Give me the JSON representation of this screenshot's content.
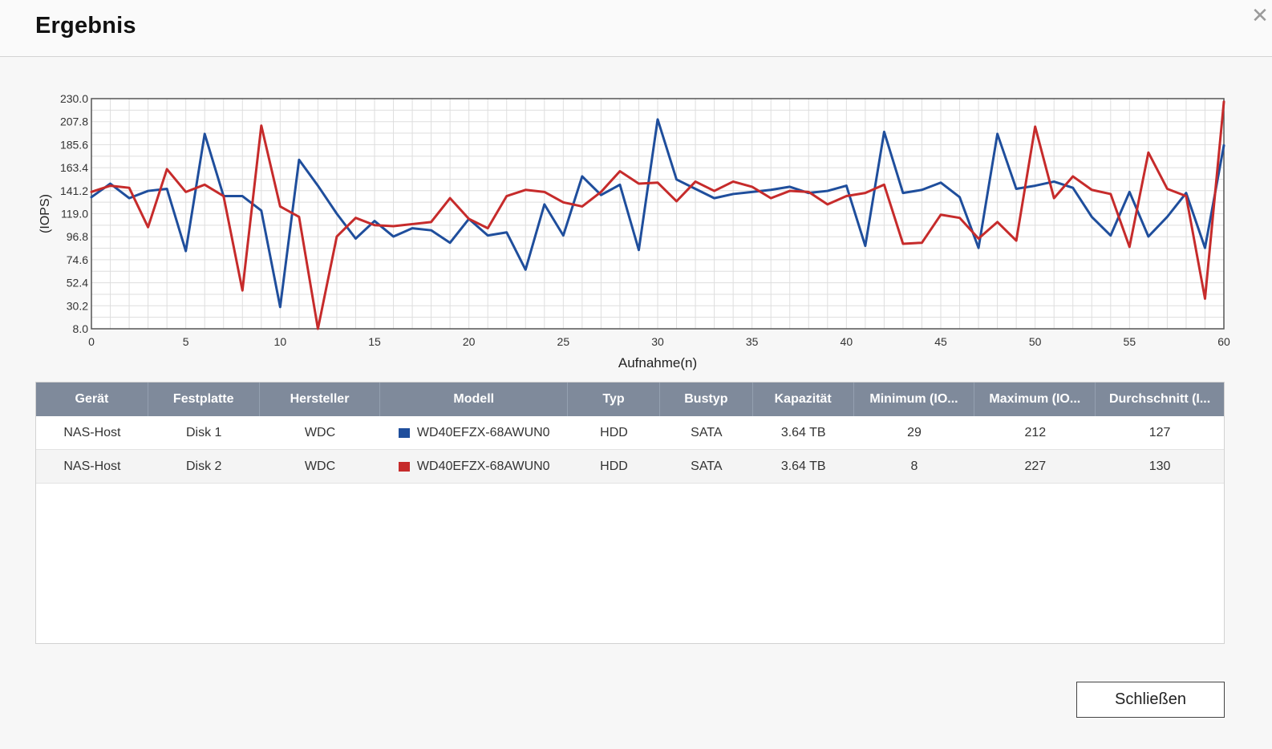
{
  "dialog": {
    "title": "Ergebnis",
    "close_icon": "close-icon",
    "close_button_label": "Schließen"
  },
  "chart_data": {
    "type": "line",
    "xlabel": "Aufnahme(n)",
    "ylabel": "(IOPS)",
    "xlim": [
      0,
      60
    ],
    "ylim": [
      8.0,
      230.0
    ],
    "x_ticks": [
      "0",
      "5",
      "10",
      "15",
      "20",
      "25",
      "30",
      "35",
      "40",
      "45",
      "50",
      "55",
      "60"
    ],
    "y_ticks": [
      "230.0",
      "207.8",
      "185.6",
      "163.4",
      "141.2",
      "119.0",
      "96.8",
      "74.6",
      "52.4",
      "30.2",
      "8.0"
    ],
    "grid": true,
    "x": [
      0,
      1,
      2,
      3,
      4,
      5,
      6,
      7,
      8,
      9,
      10,
      11,
      12,
      13,
      14,
      15,
      16,
      17,
      18,
      19,
      20,
      21,
      22,
      23,
      24,
      25,
      26,
      27,
      28,
      29,
      30,
      31,
      32,
      33,
      34,
      35,
      36,
      37,
      38,
      39,
      40,
      41,
      42,
      43,
      44,
      45,
      46,
      47,
      48,
      49,
      50,
      51,
      52,
      53,
      54,
      55,
      56,
      57,
      58,
      59,
      60
    ],
    "series": [
      {
        "color": "#1f4e9c",
        "values": [
          135,
          148,
          134,
          141,
          143,
          83,
          196,
          136,
          136,
          122,
          29,
          171,
          146,
          119,
          95,
          112,
          97,
          105,
          103,
          91,
          114,
          98,
          101,
          65,
          128,
          98,
          155,
          137,
          147,
          84,
          210,
          152,
          143,
          134,
          138,
          140,
          142,
          145,
          139,
          141,
          146,
          88,
          198,
          139,
          142,
          149,
          135,
          86,
          196,
          143,
          146,
          150,
          144,
          116,
          98,
          140,
          97,
          116,
          139,
          86,
          185
        ]
      },
      {
        "color": "#c62b2b",
        "values": [
          140,
          146,
          144,
          106,
          162,
          140,
          147,
          136,
          45,
          204,
          126,
          116,
          8,
          97,
          115,
          108,
          107,
          109,
          111,
          134,
          114,
          105,
          136,
          142,
          140,
          130,
          126,
          140,
          160,
          148,
          149,
          131,
          150,
          141,
          150,
          145,
          134,
          141,
          140,
          128,
          136,
          139,
          147,
          90,
          91,
          118,
          115,
          95,
          111,
          93,
          203,
          134,
          155,
          142,
          138,
          87,
          178,
          143,
          136,
          37,
          227
        ]
      }
    ]
  },
  "table": {
    "columns": [
      "Gerät",
      "Festplatte",
      "Hersteller",
      "Modell",
      "Typ",
      "Bustyp",
      "Kapazität",
      "Minimum (IO...",
      "Maximum (IO...",
      "Durchschnitt (I..."
    ],
    "rows": [
      {
        "device": "NAS-Host",
        "disk": "Disk 1",
        "vendor": "WDC",
        "model": "WD40EFZX-68AWUN0",
        "color": "#1f4e9c",
        "type": "HDD",
        "bus": "SATA",
        "capacity": "3.64 TB",
        "min": "29",
        "max": "212",
        "avg": "127"
      },
      {
        "device": "NAS-Host",
        "disk": "Disk 2",
        "vendor": "WDC",
        "model": "WD40EFZX-68AWUN0",
        "color": "#c62b2b",
        "type": "HDD",
        "bus": "SATA",
        "capacity": "3.64 TB",
        "min": "8",
        "max": "227",
        "avg": "130"
      }
    ]
  }
}
